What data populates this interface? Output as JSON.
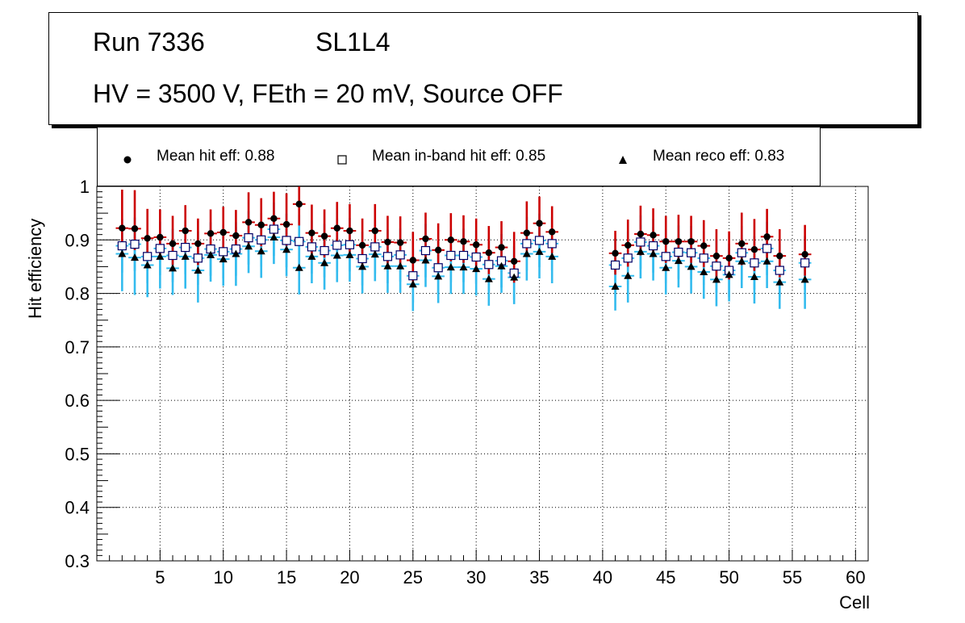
{
  "header": {
    "run": "Run 7336",
    "layer": "SL1L4",
    "conditions": "HV = 3500 V, FEth = 20 mV, Source OFF"
  },
  "legend": {
    "hit": "Mean hit  eff: 0.88",
    "inband": "Mean in-band hit eff: 0.85",
    "reco": "Mean reco eff: 0.83"
  },
  "colors": {
    "hit_marker": "#000000",
    "hit_error": "#cc0000",
    "inband_error": "#33bbee",
    "inband_marker_edge": "#000066",
    "reco_marker": "#000000",
    "reco_error": "#33bbee",
    "grid": "#000000"
  },
  "chart_data": {
    "type": "scatter",
    "xlabel": "Cell",
    "ylabel": "Hit efficiency",
    "xlim": [
      0,
      61
    ],
    "ylim": [
      0.3,
      1.0
    ],
    "xticks": [
      5,
      10,
      15,
      20,
      25,
      30,
      35,
      40,
      45,
      50,
      55,
      60
    ],
    "yticks": [
      0.3,
      0.4,
      0.5,
      0.6,
      0.7,
      0.8,
      0.9,
      1
    ],
    "grid": true,
    "series": [
      {
        "name": "Mean hit  eff: 0.88",
        "cells": [
          2,
          3,
          4,
          5,
          6,
          7,
          8,
          9,
          10,
          11,
          12,
          13,
          14,
          15,
          16,
          17,
          18,
          19,
          20,
          21,
          22,
          23,
          24,
          25,
          26,
          27,
          28,
          29,
          30,
          31,
          32,
          33,
          34,
          35,
          36,
          41,
          42,
          43,
          44,
          45,
          46,
          47,
          48,
          49,
          50,
          51,
          52,
          53,
          54,
          56
        ],
        "values": [
          0.922,
          0.921,
          0.903,
          0.905,
          0.893,
          0.917,
          0.893,
          0.912,
          0.914,
          0.908,
          0.933,
          0.928,
          0.94,
          0.929,
          0.967,
          0.913,
          0.907,
          0.922,
          0.917,
          0.89,
          0.917,
          0.896,
          0.895,
          0.862,
          0.902,
          0.881,
          0.9,
          0.897,
          0.891,
          0.876,
          0.886,
          0.86,
          0.913,
          0.931,
          0.915,
          0.875,
          0.89,
          0.911,
          0.909,
          0.897,
          0.897,
          0.897,
          0.889,
          0.87,
          0.866,
          0.893,
          0.882,
          0.906,
          0.87,
          0.873
        ],
        "err_low": [
          0.04,
          0.04,
          0.04,
          0.04,
          0.04,
          0.04,
          0.04,
          0.04,
          0.04,
          0.04,
          0.04,
          0.04,
          0.04,
          0.04,
          0.04,
          0.04,
          0.04,
          0.04,
          0.04,
          0.04,
          0.04,
          0.04,
          0.04,
          0.04,
          0.04,
          0.04,
          0.04,
          0.04,
          0.04,
          0.04,
          0.04,
          0.04,
          0.04,
          0.04,
          0.04,
          0.04,
          0.04,
          0.04,
          0.04,
          0.04,
          0.04,
          0.04,
          0.04,
          0.04,
          0.04,
          0.04,
          0.04,
          0.04,
          0.04,
          0.04
        ],
        "err_high": [
          0.072,
          0.072,
          0.055,
          0.052,
          0.052,
          0.048,
          0.047,
          0.045,
          0.048,
          0.048,
          0.056,
          0.05,
          0.05,
          0.058,
          0.04,
          0.053,
          0.05,
          0.049,
          0.05,
          0.05,
          0.05,
          0.049,
          0.049,
          0.053,
          0.049,
          0.05,
          0.05,
          0.049,
          0.049,
          0.05,
          0.049,
          0.055,
          0.059,
          0.05,
          0.048,
          0.042,
          0.048,
          0.053,
          0.05,
          0.048,
          0.05,
          0.048,
          0.048,
          0.05,
          0.05,
          0.058,
          0.057,
          0.052,
          0.05,
          0.055
        ]
      },
      {
        "name": "Mean in-band hit eff: 0.85",
        "cells": [
          2,
          3,
          4,
          5,
          6,
          7,
          8,
          9,
          10,
          11,
          12,
          13,
          14,
          15,
          16,
          17,
          18,
          19,
          20,
          21,
          22,
          23,
          24,
          25,
          26,
          27,
          28,
          29,
          30,
          31,
          32,
          33,
          34,
          35,
          36,
          41,
          42,
          43,
          44,
          45,
          46,
          47,
          48,
          49,
          50,
          51,
          52,
          53,
          54,
          56
        ],
        "values": [
          0.889,
          0.892,
          0.869,
          0.884,
          0.871,
          0.886,
          0.866,
          0.883,
          0.878,
          0.883,
          0.904,
          0.9,
          0.92,
          0.899,
          0.897,
          0.887,
          0.88,
          0.89,
          0.891,
          0.865,
          0.887,
          0.869,
          0.872,
          0.833,
          0.88,
          0.848,
          0.871,
          0.871,
          0.868,
          0.854,
          0.861,
          0.838,
          0.893,
          0.899,
          0.893,
          0.853,
          0.866,
          0.896,
          0.889,
          0.869,
          0.877,
          0.876,
          0.866,
          0.851,
          0.843,
          0.876,
          0.857,
          0.884,
          0.843,
          0.857
        ],
        "err_low": [
          0.05,
          0.05,
          0.05,
          0.05,
          0.05,
          0.05,
          0.05,
          0.05,
          0.05,
          0.05,
          0.05,
          0.05,
          0.05,
          0.05,
          0.05,
          0.05,
          0.05,
          0.05,
          0.05,
          0.05,
          0.05,
          0.05,
          0.05,
          0.05,
          0.05,
          0.05,
          0.05,
          0.05,
          0.05,
          0.05,
          0.05,
          0.05,
          0.05,
          0.05,
          0.05,
          0.05,
          0.05,
          0.05,
          0.05,
          0.05,
          0.05,
          0.05,
          0.05,
          0.05,
          0.05,
          0.05,
          0.05,
          0.05,
          0.05,
          0.05
        ],
        "err_high": [
          0.05,
          0.05,
          0.05,
          0.05,
          0.05,
          0.05,
          0.05,
          0.05,
          0.05,
          0.05,
          0.05,
          0.05,
          0.05,
          0.05,
          0.05,
          0.05,
          0.05,
          0.05,
          0.05,
          0.05,
          0.05,
          0.05,
          0.05,
          0.05,
          0.05,
          0.05,
          0.05,
          0.05,
          0.05,
          0.05,
          0.05,
          0.05,
          0.05,
          0.05,
          0.05,
          0.05,
          0.05,
          0.05,
          0.05,
          0.05,
          0.05,
          0.05,
          0.05,
          0.05,
          0.05,
          0.05,
          0.05,
          0.05,
          0.05,
          0.05
        ]
      },
      {
        "name": "Mean reco eff: 0.83",
        "cells": [
          2,
          3,
          4,
          5,
          6,
          7,
          8,
          9,
          10,
          11,
          12,
          13,
          14,
          15,
          16,
          17,
          18,
          19,
          20,
          21,
          22,
          23,
          24,
          25,
          26,
          27,
          28,
          29,
          30,
          31,
          32,
          33,
          34,
          35,
          36,
          41,
          42,
          43,
          44,
          45,
          46,
          47,
          48,
          49,
          50,
          51,
          52,
          53,
          54,
          56
        ],
        "values": [
          0.874,
          0.867,
          0.853,
          0.869,
          0.847,
          0.869,
          0.843,
          0.872,
          0.864,
          0.874,
          0.888,
          0.879,
          0.905,
          0.882,
          0.848,
          0.869,
          0.857,
          0.871,
          0.872,
          0.85,
          0.873,
          0.851,
          0.851,
          0.817,
          0.862,
          0.832,
          0.849,
          0.849,
          0.846,
          0.827,
          0.851,
          0.83,
          0.874,
          0.878,
          0.869,
          0.813,
          0.833,
          0.878,
          0.874,
          0.848,
          0.861,
          0.85,
          0.84,
          0.826,
          0.835,
          0.86,
          0.831,
          0.86,
          0.821,
          0.826
        ],
        "err_low": [
          0.07,
          0.07,
          0.06,
          0.06,
          0.05,
          0.06,
          0.06,
          0.05,
          0.05,
          0.06,
          0.05,
          0.05,
          0.05,
          0.05,
          0.05,
          0.05,
          0.05,
          0.05,
          0.05,
          0.05,
          0.05,
          0.05,
          0.05,
          0.05,
          0.05,
          0.05,
          0.05,
          0.05,
          0.05,
          0.05,
          0.05,
          0.05,
          0.05,
          0.05,
          0.05,
          0.045,
          0.05,
          0.05,
          0.05,
          0.05,
          0.05,
          0.05,
          0.05,
          0.05,
          0.05,
          0.05,
          0.05,
          0.05,
          0.05,
          0.055
        ],
        "err_high": [
          0.05,
          0.05,
          0.05,
          0.05,
          0.05,
          0.05,
          0.05,
          0.05,
          0.05,
          0.05,
          0.05,
          0.05,
          0.05,
          0.05,
          0.05,
          0.05,
          0.05,
          0.05,
          0.05,
          0.05,
          0.05,
          0.05,
          0.05,
          0.05,
          0.05,
          0.05,
          0.05,
          0.05,
          0.05,
          0.05,
          0.05,
          0.05,
          0.05,
          0.05,
          0.05,
          0.05,
          0.05,
          0.05,
          0.05,
          0.05,
          0.05,
          0.05,
          0.05,
          0.05,
          0.05,
          0.05,
          0.05,
          0.05,
          0.05,
          0.05
        ]
      }
    ]
  }
}
